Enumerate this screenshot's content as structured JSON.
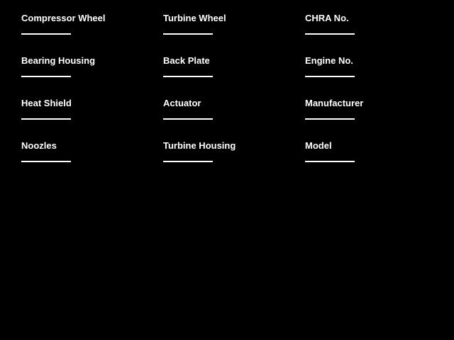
{
  "colors": {
    "background": "#000000",
    "text": "#ffffff",
    "underline": "#ffffff"
  },
  "form": {
    "columns": [
      {
        "fields": [
          {
            "label": "Compressor Wheel",
            "value": ""
          },
          {
            "label": "Bearing Housing",
            "value": ""
          },
          {
            "label": "Heat Shield",
            "value": ""
          },
          {
            "label": "Noozles",
            "value": ""
          }
        ]
      },
      {
        "fields": [
          {
            "label": "Turbine Wheel",
            "value": ""
          },
          {
            "label": "Back Plate",
            "value": ""
          },
          {
            "label": "Actuator",
            "value": ""
          },
          {
            "label": "Turbine Housing",
            "value": ""
          }
        ]
      },
      {
        "fields": [
          {
            "label": "CHRA No.",
            "value": ""
          },
          {
            "label": "Engine No.",
            "value": ""
          },
          {
            "label": "Manufacturer",
            "value": ""
          },
          {
            "label": "Model",
            "value": ""
          }
        ]
      }
    ]
  }
}
